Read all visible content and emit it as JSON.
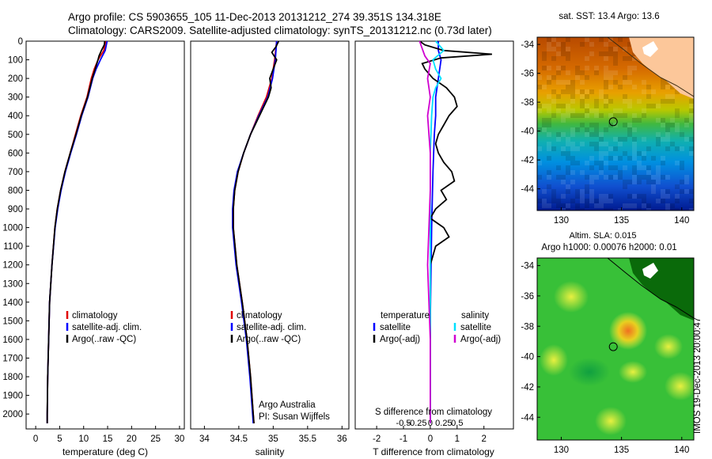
{
  "header": {
    "line1": "Argo profile: CS 5903655_105 11-Dec-2013 20131212_274 39.351S 134.318E",
    "line2": "Climatology: CARS2009. Satellite-adjusted climatology: synTS_20131212.nc (0.73d later)"
  },
  "side_note": "IMOS 19-Dec-2013 20:00:47",
  "colors": {
    "climatology": "#e00000",
    "satellite": "#0000ff",
    "argo": "#000000",
    "sal_satellite": "#00e0ff",
    "sal_argo": "#d000d0",
    "land": "#fcc79a"
  },
  "chart_data": [
    {
      "type": "line",
      "xlabel": "temperature (deg C)",
      "ylabel": "",
      "xlim": [
        -2,
        31
      ],
      "ylim": [
        2080,
        0
      ],
      "xticks": [
        0,
        5,
        10,
        15,
        20,
        25,
        30
      ],
      "yticks": [
        0,
        100,
        200,
        300,
        400,
        500,
        600,
        700,
        800,
        900,
        1000,
        1100,
        1200,
        1300,
        1400,
        1500,
        1600,
        1700,
        1800,
        1900,
        2000
      ],
      "legend": [
        "climatology",
        "satellite-adj. clim.",
        "Argo(..raw -QC)"
      ],
      "series": [
        {
          "name": "climatology",
          "depth": [
            0,
            50,
            100,
            150,
            200,
            300,
            400,
            500,
            600,
            700,
            800,
            900,
            1000,
            1200,
            1400,
            1600,
            1800,
            2000,
            2050
          ],
          "values": [
            14.6,
            14.2,
            13.0,
            12.2,
            11.6,
            10.7,
            9.4,
            8.3,
            7.2,
            6.1,
            5.2,
            4.5,
            4.0,
            3.4,
            2.9,
            2.7,
            2.5,
            2.4,
            2.4
          ]
        },
        {
          "name": "satellite-adj. clim.",
          "depth": [
            0,
            50,
            100,
            150,
            200,
            300,
            400,
            500,
            600,
            700,
            800,
            900,
            1000,
            1200,
            1400,
            1600,
            1800,
            2000,
            2050
          ],
          "values": [
            14.9,
            14.5,
            13.5,
            12.6,
            11.9,
            10.9,
            9.6,
            8.5,
            7.3,
            6.2,
            5.3,
            4.6,
            4.05,
            3.4,
            2.9,
            2.7,
            2.5,
            2.4,
            2.4
          ]
        },
        {
          "name": "Argo(..raw -QC)",
          "depth": [
            0,
            20,
            50,
            80,
            100,
            150,
            200,
            300,
            400,
            500,
            600,
            700,
            800,
            900,
            1000,
            1200,
            1400,
            1600,
            1800,
            2000,
            2050
          ],
          "values": [
            14.4,
            14.3,
            13.7,
            13.2,
            13.0,
            12.4,
            11.8,
            10.8,
            9.5,
            8.4,
            7.2,
            6.1,
            5.2,
            4.5,
            4.0,
            3.4,
            2.9,
            2.7,
            2.5,
            2.4,
            2.4
          ]
        }
      ]
    },
    {
      "type": "line",
      "xlabel": "salinity",
      "ylabel": "",
      "xlim": [
        33.8,
        36.1
      ],
      "ylim": [
        2080,
        0
      ],
      "xticks": [
        34,
        34.5,
        35,
        35.5,
        36
      ],
      "legend": [
        "climatology",
        "satellite-adj. clim.",
        "Argo(..raw -QC)"
      ],
      "annotation": [
        "Argo Australia",
        "PI: Susan Wijffels"
      ],
      "series": [
        {
          "name": "climatology",
          "depth": [
            0,
            100,
            200,
            300,
            400,
            500,
            600,
            700,
            800,
            900,
            1000,
            1200,
            1400,
            1600,
            1800,
            2000,
            2050
          ],
          "values": [
            35.05,
            35.02,
            34.98,
            34.9,
            34.78,
            34.67,
            34.57,
            34.49,
            34.44,
            34.42,
            34.42,
            34.47,
            34.55,
            34.62,
            34.67,
            34.71,
            34.72
          ]
        },
        {
          "name": "satellite-adj. clim.",
          "depth": [
            0,
            100,
            200,
            300,
            400,
            500,
            600,
            700,
            800,
            900,
            1000,
            1200,
            1400,
            1600,
            1800,
            2000,
            2050
          ],
          "values": [
            35.05,
            35.03,
            34.99,
            34.92,
            34.79,
            34.67,
            34.57,
            34.48,
            34.43,
            34.41,
            34.41,
            34.46,
            34.54,
            34.61,
            34.66,
            34.7,
            34.71
          ]
        },
        {
          "name": "Argo(..raw -QC)",
          "depth": [
            0,
            30,
            60,
            100,
            150,
            200,
            250,
            300,
            400,
            500,
            600,
            700,
            800,
            900,
            1000,
            1200,
            1400,
            1600,
            1800,
            2000,
            2050
          ],
          "values": [
            35.08,
            35.04,
            34.98,
            35.05,
            35.0,
            34.95,
            34.97,
            34.93,
            34.8,
            34.67,
            34.57,
            34.49,
            34.44,
            34.42,
            34.42,
            34.47,
            34.55,
            34.62,
            34.67,
            34.71,
            34.72
          ]
        }
      ]
    },
    {
      "type": "line",
      "xlabel": "T difference from climatology",
      "xlabel_top": "S difference from climatology",
      "ylabel": "",
      "xlim": [
        -2.8,
        3.1
      ],
      "ylim": [
        2080,
        0
      ],
      "xticks": [
        -2,
        -1,
        0,
        1,
        2
      ],
      "xticks_sal": [
        "-0.5",
        "-0.25",
        "0",
        "0.25",
        "0.5"
      ],
      "legend_temperature": [
        "temperature",
        "satellite",
        "Argo(-adj)"
      ],
      "legend_salinity": [
        "salinity",
        "satellite",
        "Argo(-adj)"
      ],
      "series": [
        {
          "name": "temperature satellite",
          "depth": [
            0,
            50,
            100,
            200,
            300,
            400,
            500,
            700,
            1000,
            1500,
            2050
          ],
          "values": [
            0.3,
            0.3,
            0.4,
            0.3,
            0.2,
            0.2,
            0.15,
            0.1,
            0.05,
            0.0,
            0.0
          ]
        },
        {
          "name": "temperature Argo(-adj)",
          "depth": [
            0,
            20,
            50,
            70,
            90,
            120,
            150,
            200,
            250,
            300,
            350,
            400,
            450,
            500,
            550,
            600,
            650,
            700,
            750,
            800,
            850,
            900,
            950,
            1000,
            1050,
            1100,
            1200,
            1400,
            1600,
            1800,
            2050
          ],
          "values": [
            -0.4,
            -0.2,
            0.5,
            2.3,
            0.4,
            -0.3,
            -0.2,
            0.1,
            0.6,
            0.9,
            1.0,
            0.7,
            0.5,
            0.3,
            0.2,
            0.3,
            0.5,
            0.8,
            0.9,
            0.4,
            0.6,
            0.2,
            0.0,
            0.5,
            0.7,
            0.2,
            0.0,
            0.0,
            0.0,
            0.0,
            0.0
          ]
        },
        {
          "name": "salinity satellite",
          "depth": [
            0,
            50,
            100,
            150,
            200,
            250,
            300,
            400,
            600,
            1000,
            1500,
            2050
          ],
          "values": [
            0.2,
            0.5,
            0.1,
            0.2,
            0.4,
            0.2,
            0.1,
            0.05,
            0.0,
            0.0,
            0.0,
            0.0
          ]
        },
        {
          "name": "salinity Argo(-adj)",
          "depth": [
            0,
            40,
            80,
            120,
            200,
            300,
            400,
            600,
            800,
            1200,
            1600,
            2050
          ],
          "values": [
            -0.4,
            -0.3,
            -0.2,
            0.0,
            -0.1,
            0.0,
            -0.1,
            0.0,
            0.0,
            -0.1,
            0.0,
            0.0
          ]
        }
      ]
    },
    {
      "type": "heatmap",
      "title": "sat. SST: 13.4 Argo: 13.6",
      "xlim": [
        128,
        141
      ],
      "ylim": [
        -45.5,
        -33.5
      ],
      "xticks": [
        130,
        135,
        140
      ],
      "yticks": [
        -34,
        -36,
        -38,
        -40,
        -42,
        -44
      ],
      "profile_location": [
        134.318,
        -39.351
      ]
    },
    {
      "type": "heatmap",
      "title": "Altim. SLA: 0.015",
      "subtitle": "Argo h1000: 0.00076 h2000: 0.01",
      "xlim": [
        128,
        141
      ],
      "ylim": [
        -45.5,
        -33.5
      ],
      "xticks": [
        130,
        135,
        140
      ],
      "yticks": [
        -34,
        -36,
        -38,
        -40,
        -42,
        -44
      ],
      "profile_location": [
        134.318,
        -39.351
      ]
    }
  ]
}
